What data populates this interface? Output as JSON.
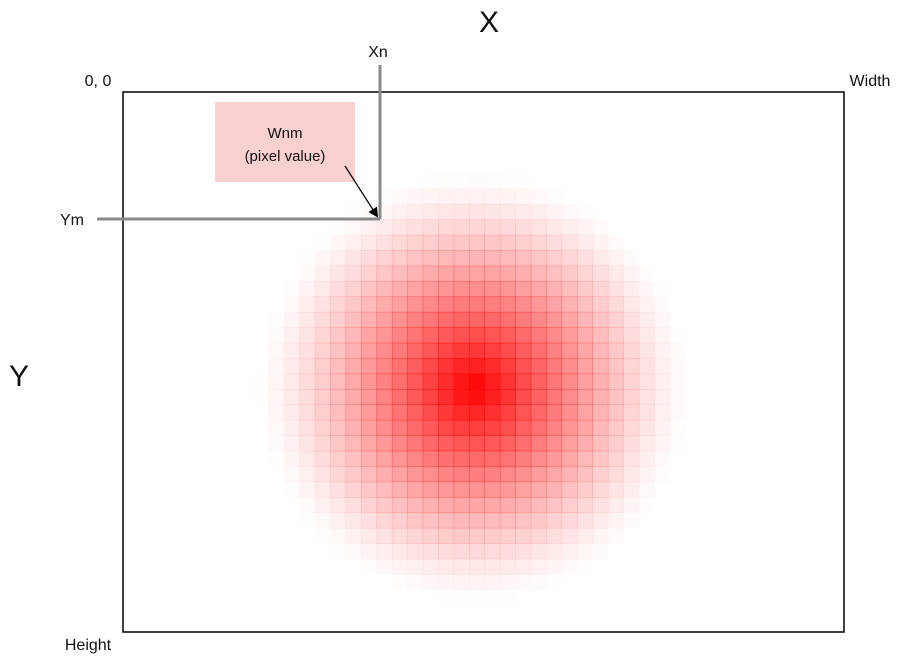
{
  "labels": {
    "x_axis": "X",
    "y_axis": "Y",
    "origin": "0, 0",
    "width": "Width",
    "height": "Height",
    "xn": "Xn",
    "ym": "Ym",
    "pixel_line1": "Wnm",
    "pixel_line2": "(pixel value)"
  },
  "colors": {
    "blob": "#ff0000",
    "label_box": "#f9d0d0",
    "guide_line": "#8a8a8a",
    "frame": "#000000"
  },
  "blob": {
    "grid_cells": 28,
    "falloff_radius_cells": 14
  }
}
